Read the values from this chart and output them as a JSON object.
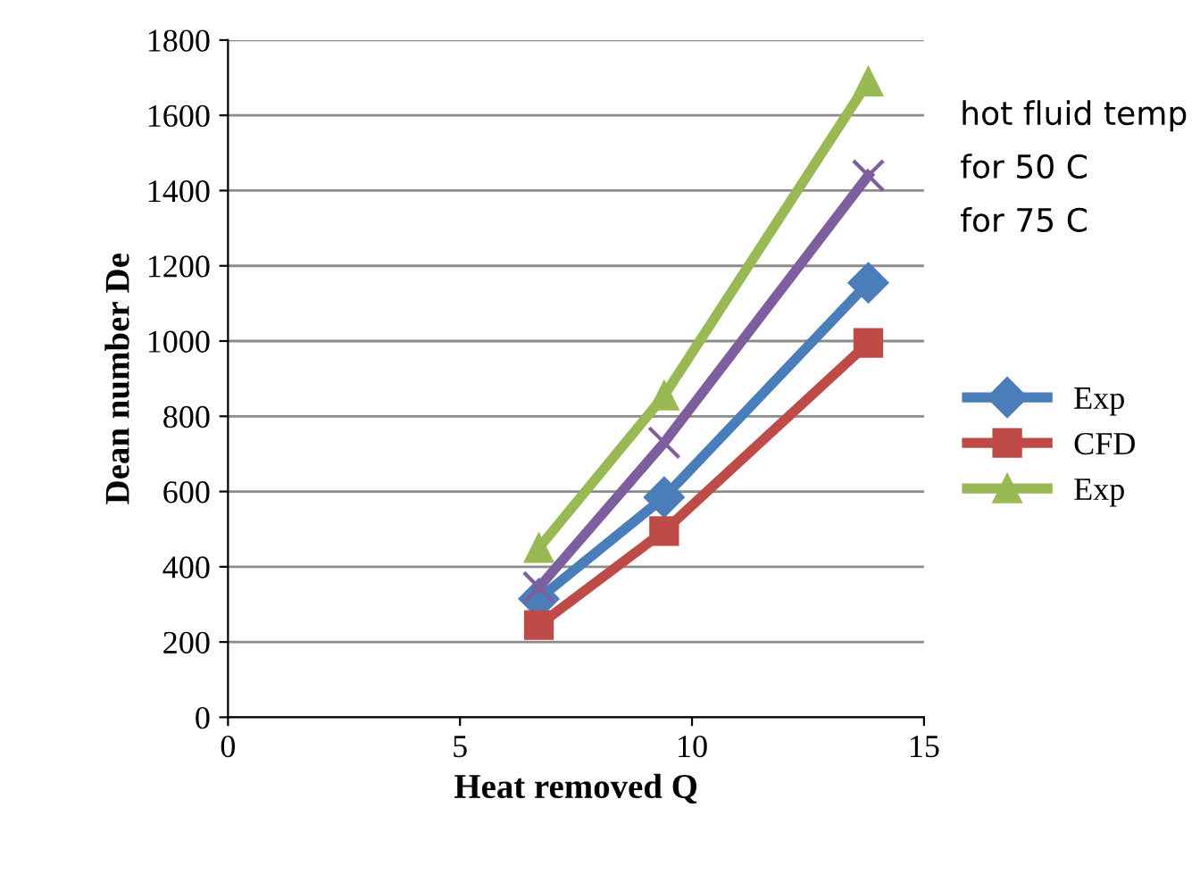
{
  "chart_data": {
    "type": "line",
    "xlabel": "Heat removed Q",
    "ylabel": "Dean number De",
    "x": [
      6.7,
      9.4,
      13.8
    ],
    "series": [
      {
        "name": "Exp",
        "color": "#4a7ebb",
        "values": [
          315,
          585,
          1155
        ],
        "marker": "diamond"
      },
      {
        "name": "CFD",
        "color": "#be4b48",
        "values": [
          245,
          495,
          995
        ],
        "marker": "square"
      },
      {
        "name": "Exp",
        "color": "#98b954",
        "values": [
          450,
          855,
          1690
        ],
        "marker": "triangle"
      },
      {
        "color": "#7d5fa0",
        "values": [
          345,
          730,
          1440
        ],
        "marker": "cross"
      }
    ],
    "xlim": [
      0,
      15
    ],
    "xticks": [
      0,
      5,
      10,
      15
    ],
    "ylim": [
      0,
      1800
    ],
    "yticks": [
      0,
      200,
      400,
      600,
      800,
      1000,
      1200,
      1400,
      1600,
      1800
    ],
    "grid": "y",
    "legend": "right",
    "annotations": [
      "hot fluid temp",
      "for 50 C",
      "for 75 C"
    ]
  }
}
